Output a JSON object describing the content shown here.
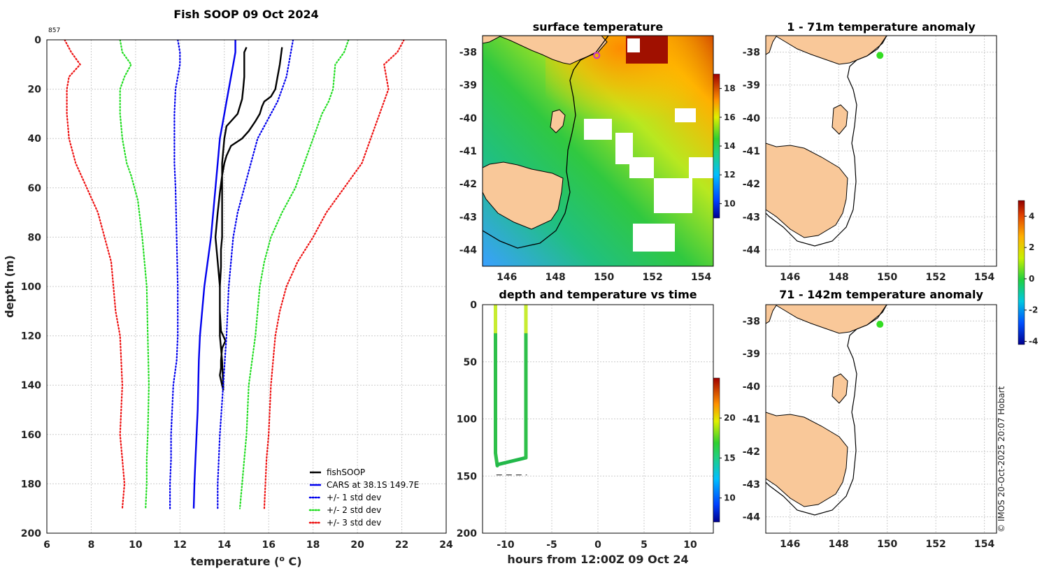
{
  "chart_data": [
    {
      "type": "line",
      "title": "Fish SOOP 09 Oct 2024",
      "id_label": "857",
      "xlabel": "temperature (",
      "xlabel_sup": "o",
      "xlabel_end": " C)",
      "ylabel": "depth (m)",
      "xlim": [
        6,
        24
      ],
      "ylim": [
        0,
        200
      ],
      "y_inverted": true,
      "xticks": [
        6,
        8,
        10,
        12,
        14,
        16,
        18,
        20,
        22,
        24
      ],
      "yticks": [
        0,
        20,
        40,
        60,
        80,
        100,
        120,
        140,
        160,
        180,
        200
      ],
      "grid": true,
      "legend_position": "bottom-right",
      "series": [
        {
          "name": "fishSOOP",
          "color": "#000000",
          "style": "solid",
          "x": [
            15.0,
            14.9,
            14.9,
            14.9,
            14.85,
            14.8,
            14.7,
            14.6,
            14.3,
            14.1,
            14.0,
            13.9,
            13.9,
            13.9,
            13.9,
            13.85,
            13.85,
            13.85,
            13.85,
            13.8,
            13.8,
            13.85,
            14.05,
            13.9,
            13.85,
            13.85,
            13.8,
            13.9,
            13.95,
            13.95,
            13.9,
            13.8,
            13.8,
            13.7,
            13.6,
            13.7,
            13.8,
            13.9,
            14.0,
            14.1,
            14.3,
            14.8,
            15.1,
            15.4,
            15.6,
            15.7,
            15.8,
            16.1,
            16.3,
            16.4,
            16.5,
            16.6
          ],
          "y": [
            3,
            5,
            10,
            15,
            20,
            24,
            27,
            30,
            33,
            35,
            40,
            50,
            60,
            70,
            80,
            85,
            88,
            90,
            92,
            100,
            110,
            118,
            122,
            125,
            130,
            133,
            136,
            140,
            142,
            140,
            130,
            120,
            100,
            90,
            80,
            70,
            62,
            55,
            50,
            47,
            43,
            40,
            37,
            33,
            30,
            27,
            25,
            23,
            20,
            15,
            10,
            3
          ]
        },
        {
          "name": "CARS at 38.1S 149.7E",
          "color": "#0000ee",
          "style": "solid",
          "x": [
            14.5,
            14.5,
            14.4,
            14.3,
            14.2,
            14.1,
            14.0,
            13.9,
            13.8,
            13.7,
            13.6,
            13.4,
            13.1,
            12.9,
            12.85,
            12.8,
            12.7,
            12.65,
            12.62
          ],
          "y": [
            0,
            5,
            10,
            15,
            20,
            25,
            30,
            35,
            40,
            50,
            60,
            80,
            100,
            120,
            130,
            150,
            170,
            180,
            190
          ]
        },
        {
          "name": "+/- 1 std dev",
          "color": "#0000ee",
          "style": "dotted",
          "x": [
            11.9,
            12.0,
            12.0,
            11.9,
            11.8,
            11.75,
            11.75,
            11.75,
            11.8,
            11.85,
            11.9,
            11.9,
            11.85,
            11.7,
            11.6,
            11.6,
            11.55,
            11.55
          ],
          "y": [
            0,
            5,
            10,
            15,
            20,
            30,
            40,
            50,
            60,
            80,
            100,
            120,
            130,
            140,
            160,
            170,
            180,
            190
          ]
        },
        {
          "name": "+/- 1 std dev (upper)",
          "color": "#0000ee",
          "style": "dotted",
          "x": [
            17.1,
            17.0,
            16.9,
            16.8,
            16.6,
            16.4,
            16.1,
            15.8,
            15.5,
            15.2,
            14.9,
            14.6,
            14.4,
            14.2,
            14.1,
            13.95,
            13.8,
            13.7,
            13.7
          ],
          "y": [
            0,
            5,
            10,
            15,
            20,
            25,
            30,
            35,
            40,
            50,
            60,
            70,
            80,
            100,
            120,
            140,
            160,
            180,
            190
          ]
        },
        {
          "name": "+/- 2 std dev",
          "color": "#22dd22",
          "style": "dotted",
          "x": [
            9.3,
            9.4,
            9.8,
            9.5,
            9.3,
            9.3,
            9.4,
            9.6,
            9.8,
            10.1,
            10.3,
            10.4,
            10.5,
            10.55,
            10.6,
            10.55,
            10.5,
            10.5,
            10.45
          ],
          "y": [
            0,
            5,
            10,
            15,
            20,
            30,
            40,
            50,
            55,
            65,
            80,
            90,
            100,
            120,
            140,
            160,
            170,
            180,
            190
          ]
        },
        {
          "name": "+/- 2 std dev (upper)",
          "color": "#22dd22",
          "style": "dotted",
          "x": [
            19.6,
            19.4,
            19.0,
            18.9,
            18.7,
            18.4,
            18.0,
            17.6,
            17.2,
            16.6,
            16.1,
            15.8,
            15.6,
            15.4,
            15.1,
            15.0,
            14.9,
            14.8,
            14.7
          ],
          "y": [
            0,
            5,
            10,
            20,
            25,
            30,
            40,
            50,
            60,
            70,
            80,
            90,
            100,
            120,
            140,
            160,
            170,
            180,
            190
          ]
        },
        {
          "name": "+/- 3 std dev",
          "color": "#ee1111",
          "style": "dotted",
          "x": [
            6.8,
            7.1,
            7.5,
            7.0,
            6.9,
            6.9,
            7.0,
            7.3,
            7.8,
            8.3,
            8.6,
            8.9,
            9.0,
            9.1,
            9.3,
            9.4,
            9.3,
            9.4,
            9.5,
            9.4
          ],
          "y": [
            0,
            5,
            10,
            15,
            20,
            30,
            40,
            50,
            60,
            70,
            80,
            90,
            100,
            110,
            120,
            140,
            160,
            170,
            180,
            190
          ]
        },
        {
          "name": "+/- 3 std dev (upper)",
          "color": "#ee1111",
          "style": "dotted",
          "x": [
            22.1,
            21.8,
            21.2,
            21.4,
            21.0,
            20.6,
            20.2,
            19.4,
            18.6,
            18.0,
            17.3,
            16.8,
            16.5,
            16.3,
            16.1,
            16.0,
            15.9,
            15.85,
            15.8
          ],
          "y": [
            0,
            5,
            10,
            20,
            30,
            40,
            50,
            60,
            70,
            80,
            90,
            100,
            110,
            120,
            140,
            160,
            170,
            180,
            190
          ]
        }
      ],
      "legend": [
        "fishSOOP",
        "CARS at 38.1S 149.7E",
        "+/- 1 std dev",
        "+/- 2 std dev",
        "+/- 3 std dev"
      ],
      "legend_colors": [
        "#000000",
        "#0000ee",
        "#0000ee",
        "#22dd22",
        "#ee1111"
      ],
      "legend_styles": [
        "solid",
        "solid",
        "dotted",
        "dotted",
        "dotted"
      ]
    },
    {
      "type": "heatmap",
      "title": "surface temperature",
      "xlim": [
        145,
        154.5
      ],
      "ylim": [
        -44.5,
        -37.5
      ],
      "xticks": [
        146,
        148,
        150,
        152,
        154
      ],
      "yticks": [
        -38,
        -39,
        -40,
        -41,
        -42,
        -43,
        -44
      ],
      "colorbar": {
        "range": [
          9,
          19
        ],
        "ticks": [
          10,
          12,
          14,
          16,
          18
        ]
      },
      "marker": {
        "lon": 149.7,
        "lat": -38.1,
        "color": "#cc33cc"
      }
    },
    {
      "type": "scatter",
      "title": "depth and temperature vs time",
      "xlabel": "hours from 12:00Z 09 Oct 24",
      "xlim": [
        -12.5,
        12.5
      ],
      "ylim": [
        0,
        200
      ],
      "y_inverted": true,
      "xticks": [
        -10,
        -5,
        0,
        5,
        10
      ],
      "yticks": [
        0,
        50,
        100,
        150,
        200
      ],
      "bottom_depth_line": {
        "x": [
          -11.0,
          -7.7
        ],
        "y": 149
      },
      "descent": {
        "x": [
          -11.1,
          -11.1,
          -11.1,
          -10.9
        ],
        "y": [
          0,
          60,
          130,
          141
        ]
      },
      "bottom": {
        "x": [
          -10.9,
          -7.8
        ],
        "y": [
          140,
          134
        ]
      },
      "ascent": {
        "x": [
          -7.8,
          -7.8,
          -7.8
        ],
        "y": [
          134,
          60,
          0
        ]
      },
      "colorbar": {
        "range": [
          7,
          25
        ],
        "ticks": [
          10,
          15,
          20
        ]
      }
    },
    {
      "type": "heatmap",
      "title": "1 - 71m temperature anomaly",
      "xlim": [
        145,
        154.5
      ],
      "ylim": [
        -44.5,
        -37.5
      ],
      "xticks": [
        146,
        148,
        150,
        152,
        154
      ],
      "yticks": [
        -38,
        -39,
        -40,
        -41,
        -42,
        -43,
        -44
      ],
      "marker": {
        "lon": 149.7,
        "lat": -38.1,
        "color": "#33dd22"
      },
      "colorbar": {
        "range": [
          -4.2,
          5.0
        ],
        "ticks": [
          -4,
          -2,
          0,
          2,
          4
        ]
      }
    },
    {
      "type": "heatmap",
      "title": "71 - 142m temperature anomaly",
      "xlim": [
        145,
        154.5
      ],
      "ylim": [
        -44.5,
        -37.5
      ],
      "xticks": [
        146,
        148,
        150,
        152,
        154
      ],
      "yticks": [
        -38,
        -39,
        -40,
        -41,
        -42,
        -43,
        -44
      ],
      "marker": {
        "lon": 149.7,
        "lat": -38.1,
        "color": "#33dd22"
      }
    }
  ],
  "credit": "© IMOS 20-Oct-2025 20:07 Hobart"
}
